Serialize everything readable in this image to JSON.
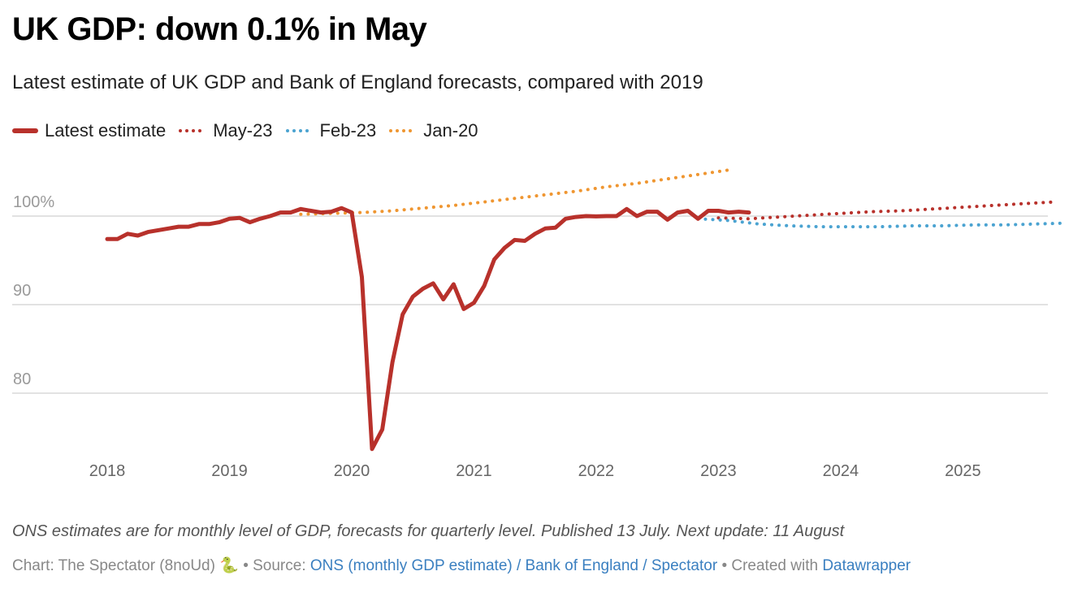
{
  "header": {
    "title": "UK GDP: down 0.1% in May",
    "subtitle": "Latest estimate of UK GDP and Bank of England forecasts, compared with 2019"
  },
  "legend": [
    {
      "label": "Latest estimate",
      "style": "solid",
      "color": "#b8312b"
    },
    {
      "label": "May-23",
      "style": "dotted",
      "color": "#b8312b"
    },
    {
      "label": "Feb-23",
      "style": "dotted",
      "color": "#4ba3d1"
    },
    {
      "label": "Jan-20",
      "style": "dotted",
      "color": "#ef9631"
    }
  ],
  "chart_data": {
    "type": "line",
    "title": "UK GDP: down 0.1% in May",
    "subtitle": "Latest estimate of UK GDP and Bank of England forecasts, compared with 2019",
    "xlabel": "",
    "ylabel": "",
    "x_start": "2018-01",
    "x_end": "2025-08",
    "x_ticks": [
      "2018",
      "2019",
      "2020",
      "2021",
      "2022",
      "2023",
      "2024",
      "2025"
    ],
    "y_ticks": [
      {
        "value": 80,
        "label": "80"
      },
      {
        "value": 90,
        "label": "90"
      },
      {
        "value": 100,
        "label": "100%"
      }
    ],
    "ylim": [
      73,
      106
    ],
    "grid": true,
    "legend_position": "top-left",
    "series": [
      {
        "name": "Latest estimate",
        "style": "solid",
        "color": "#b8312b",
        "frequency": "monthly",
        "start": "2018-01",
        "values": [
          97.4,
          97.4,
          98.0,
          97.8,
          98.2,
          98.4,
          98.6,
          98.8,
          98.8,
          99.1,
          99.1,
          99.3,
          99.7,
          99.8,
          99.3,
          99.7,
          100.0,
          100.4,
          100.4,
          100.8,
          100.6,
          100.4,
          100.5,
          100.9,
          100.4,
          93.1,
          73.7,
          75.9,
          83.5,
          88.9,
          90.9,
          91.8,
          92.4,
          90.6,
          92.3,
          89.5,
          90.2,
          92.1,
          95.1,
          96.4,
          97.3,
          97.2,
          98.0,
          98.6,
          98.7,
          99.7,
          99.9,
          100.0,
          99.96,
          100.0,
          100.0,
          100.8,
          100.0,
          100.5,
          100.5,
          99.6,
          100.4,
          100.6,
          99.7,
          100.6,
          100.6,
          100.4,
          100.5,
          100.4
        ]
      },
      {
        "name": "May-23",
        "style": "dotted",
        "color": "#b8312b",
        "frequency": "quarterly",
        "start": "2023-01",
        "values": [
          99.8,
          99.7,
          99.9,
          100.1,
          100.3,
          100.5,
          100.6,
          100.8,
          101.0,
          101.2,
          101.4,
          101.6
        ]
      },
      {
        "name": "Feb-23",
        "style": "dotted",
        "color": "#4ba3d1",
        "frequency": "quarterly",
        "start": "2022-11",
        "values": [
          99.7,
          99.5,
          99.1,
          98.9,
          98.8,
          98.8,
          98.8,
          98.9,
          98.9,
          99.0,
          99.0,
          99.1,
          99.2
        ]
      },
      {
        "name": "Jan-20",
        "style": "dotted",
        "color": "#ef9631",
        "frequency": "quarterly",
        "start": "2019-08",
        "values": [
          100.2,
          100.3,
          100.4,
          100.6,
          100.9,
          101.2,
          101.6,
          102.0,
          102.4,
          102.8,
          103.3,
          103.7,
          104.2,
          104.7,
          105.2
        ]
      }
    ]
  },
  "notes": "ONS estimates are for monthly level of GDP, forecasts for quarterly level. Published 13 July. Next update: 11 August",
  "footer": {
    "chart_credit": "Chart: The Spectator (8noUd)",
    "emoji": "🐍",
    "separator": "•",
    "source_label": "Source:",
    "source_link": "ONS (monthly GDP estimate) / Bank of England / Spectator",
    "created_label": "Created with",
    "created_link": "Datawrapper"
  }
}
